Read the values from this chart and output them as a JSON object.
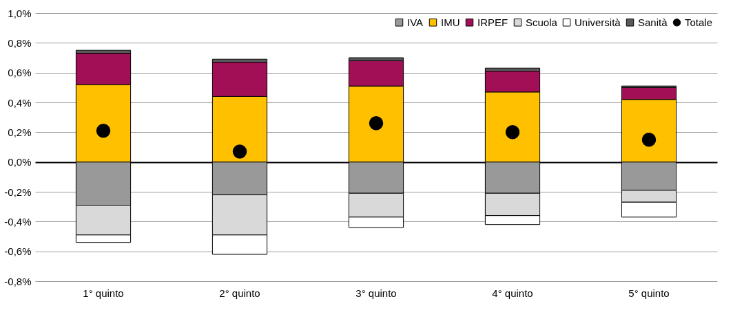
{
  "chart_data": {
    "type": "bar",
    "stacked": true,
    "categories": [
      "1° quinto",
      "2° quinto",
      "3° quinto",
      "4° quinto",
      "5° quinto"
    ],
    "series": [
      {
        "name": "IVA",
        "color": "#999999",
        "values": [
          -0.29,
          -0.22,
          -0.21,
          -0.21,
          -0.19
        ]
      },
      {
        "name": "IMU",
        "color": "#ffc000",
        "values": [
          0.52,
          0.44,
          0.51,
          0.47,
          0.42
        ]
      },
      {
        "name": "IRPEF",
        "color": "#a10f57",
        "values": [
          0.21,
          0.23,
          0.17,
          0.14,
          0.08
        ]
      },
      {
        "name": "Scuola",
        "color": "#d9d9d9",
        "values": [
          -0.2,
          -0.27,
          -0.16,
          -0.15,
          -0.08
        ]
      },
      {
        "name": "Università",
        "color": "#ffffff",
        "values": [
          -0.05,
          -0.13,
          -0.07,
          -0.06,
          -0.1
        ]
      },
      {
        "name": "Sanità",
        "color": "#595959",
        "values": [
          0.02,
          0.02,
          0.02,
          0.02,
          0.01
        ]
      },
      {
        "name": "Totale",
        "type": "scatter",
        "color": "#000000",
        "x": [
          "1° quinto",
          "2° quinto",
          "3° quinto",
          "4° quinto",
          "5° quinto"
        ],
        "values": [
          0.21,
          0.07,
          0.26,
          0.2,
          0.15
        ]
      }
    ],
    "ylim": [
      -0.8,
      1.0
    ],
    "yticks": [
      {
        "value": -0.8,
        "label": "-0,8%"
      },
      {
        "value": -0.6,
        "label": "-0,6%"
      },
      {
        "value": -0.4,
        "label": "-0,4%"
      },
      {
        "value": -0.2,
        "label": "-0,2%"
      },
      {
        "value": 0,
        "label": "0,0%"
      },
      {
        "value": 0.2,
        "label": "0,2%"
      },
      {
        "value": 0.4,
        "label": "0,4%"
      },
      {
        "value": 0.6,
        "label": "0,6%"
      },
      {
        "value": 0.8,
        "label": "0,8%"
      },
      {
        "value": 1.0,
        "label": "1,0%"
      }
    ],
    "grid": "y",
    "legend": "top right",
    "marker": "circle"
  }
}
